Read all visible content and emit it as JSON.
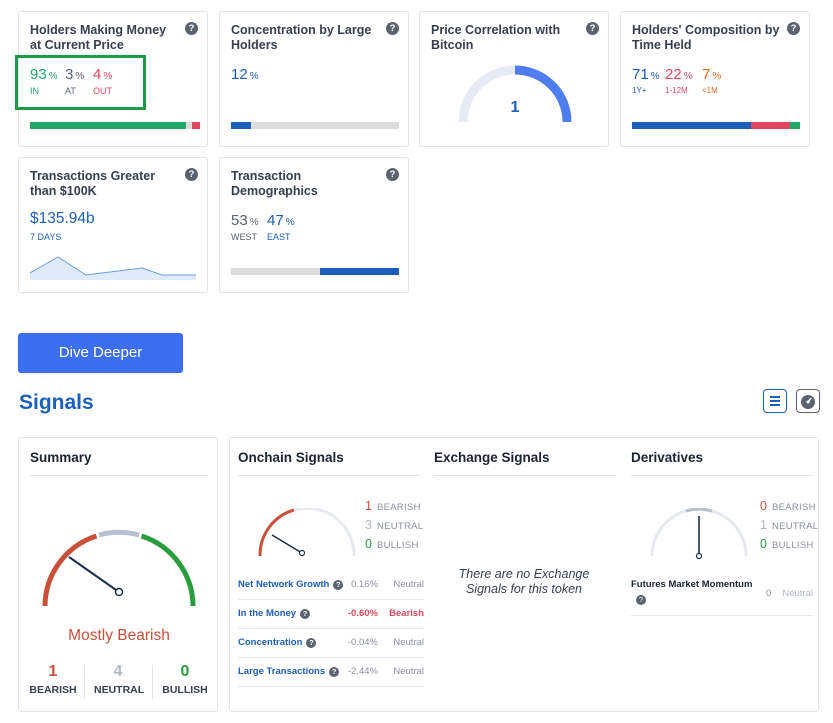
{
  "metrics": {
    "money": {
      "title": "Holders Making Money at Current Price",
      "in_value": "93",
      "at_value": "3",
      "out_value": "4",
      "pct_symbol": "%",
      "in_label": "IN",
      "at_label": "AT",
      "out_label": "OUT",
      "bar": {
        "in": 0.93,
        "at": 0.03,
        "out": 0.04
      }
    },
    "concentration": {
      "title": "Concentration by Large Holders",
      "value": "12",
      "pct_symbol": "%",
      "bar_fill": 0.12
    },
    "correlation": {
      "title": "Price Correlation with Bitcoin",
      "value": "1",
      "gauge_fill": 1.0
    },
    "composition": {
      "title": "Holders' Composition by Time Held",
      "long_value": "71",
      "mid_value": "22",
      "short_value": "7",
      "pct_symbol": "%",
      "long_label": "1Y+",
      "mid_label": "1-12M",
      "short_label": "<1M",
      "bar": {
        "long": 0.71,
        "mid": 0.22,
        "short": 0.07
      }
    },
    "transactions": {
      "title": "Transactions Greater than $100K",
      "value": "$135.94b",
      "period": "7 DAYS"
    },
    "demographics": {
      "title": "Transaction Demographics",
      "west_value": "53",
      "east_value": "47",
      "pct_symbol": "%",
      "west_label": "WEST",
      "east_label": "EAST",
      "bar": {
        "west": 0.53,
        "east": 0.47
      }
    }
  },
  "dive_button": "Dive Deeper",
  "signals_heading": "Signals",
  "summary": {
    "title": "Summary",
    "verdict": "Mostly Bearish",
    "bearish_count": "1",
    "neutral_count": "4",
    "bullish_count": "0",
    "bearish_label": "BEARISH",
    "neutral_label": "NEUTRAL",
    "bullish_label": "BULLISH",
    "needle_level": 0.25
  },
  "onchain": {
    "title": "Onchain Signals",
    "bearish": "1",
    "neutral": "3",
    "bullish": "0",
    "bearish_label": "BEARISH",
    "neutral_label": "NEUTRAL",
    "bullish_label": "BULLISH",
    "rows": [
      {
        "name": "Net Network Growth",
        "value": "0.16%",
        "status": "Neutral"
      },
      {
        "name": "In the Money",
        "value": "-0.60%",
        "status": "Bearish"
      },
      {
        "name": "Concentration",
        "value": "-0.04%",
        "status": "Neutral"
      },
      {
        "name": "Large Transactions",
        "value": "-2.44%",
        "status": "Neutral"
      }
    ]
  },
  "exchange": {
    "title": "Exchange Signals",
    "empty_message": "There are no Exchange Signals for this token"
  },
  "derivatives": {
    "title": "Derivatives",
    "bearish": "0",
    "neutral": "1",
    "bullish": "0",
    "bearish_label": "BEARISH",
    "neutral_label": "NEUTRAL",
    "bullish_label": "BULLISH",
    "row_name": "Futures Market Momentum",
    "row_value": "0",
    "row_status": "Neutral"
  },
  "colors": {
    "green": "#21a768",
    "red": "#e0485f",
    "blue": "#1b5fb8",
    "accent_button": "#3b6ff0",
    "gauge_blue": "#4f7df0",
    "highlight": "#1c9a48"
  },
  "icons": [
    "help-icon",
    "list-view-icon",
    "gauge-view-icon"
  ]
}
